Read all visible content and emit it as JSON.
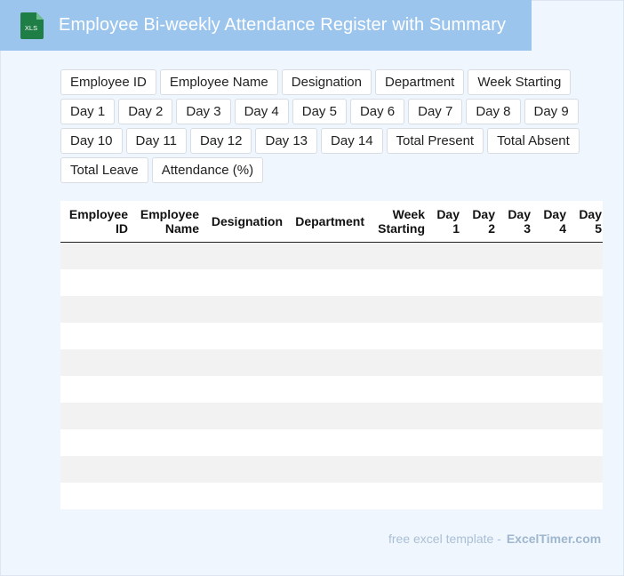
{
  "header": {
    "title": "Employee Bi-weekly Attendance Register with Summary",
    "icon_label": "XLS",
    "background": "#9cc5ee"
  },
  "fields": [
    "Employee ID",
    "Employee Name",
    "Designation",
    "Department",
    "Week Starting",
    "Day 1",
    "Day 2",
    "Day 3",
    "Day 4",
    "Day 5",
    "Day 6",
    "Day 7",
    "Day 8",
    "Day 9",
    "Day 10",
    "Day 11",
    "Day 12",
    "Day 13",
    "Day 14",
    "Total Present",
    "Total Absent",
    "Total Leave",
    "Attendance (%)"
  ],
  "table": {
    "columns": [
      {
        "line1": "Employee",
        "line2": "ID"
      },
      {
        "line1": "Employee",
        "line2": "Name"
      },
      {
        "line1": "Designation",
        "line2": ""
      },
      {
        "line1": "Department",
        "line2": ""
      },
      {
        "line1": "Week",
        "line2": "Starting"
      },
      {
        "line1": "Day",
        "line2": "1"
      },
      {
        "line1": "Day",
        "line2": "2"
      },
      {
        "line1": "Day",
        "line2": "3"
      },
      {
        "line1": "Day",
        "line2": "4"
      },
      {
        "line1": "Day",
        "line2": "5"
      }
    ],
    "empty_rows": 10
  },
  "footer": {
    "lead": "free excel template -",
    "brand": "ExcelTimer.com"
  }
}
